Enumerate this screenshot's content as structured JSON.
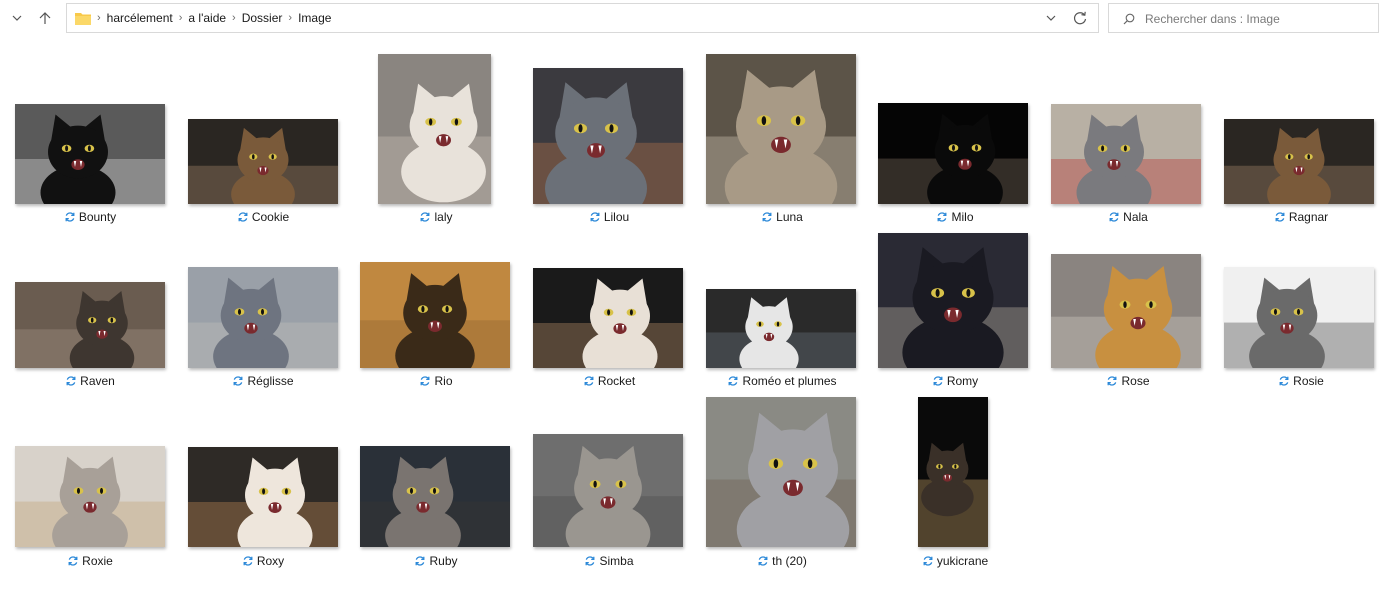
{
  "address_bar": {
    "breadcrumbs": [
      "harcélement",
      "a l'aide",
      "Dossier",
      "Image"
    ]
  },
  "search": {
    "placeholder": "Rechercher dans : Image"
  },
  "colors": {
    "accent": "#0078d7",
    "folder": "#f8c94a",
    "sync_icon": "#2b88d8"
  },
  "icons": {
    "recent": "chevron-down-icon",
    "up": "arrow-up-icon",
    "folder": "folder-icon",
    "dropdown": "chevron-down-icon",
    "refresh": "refresh-icon",
    "search": "search-icon",
    "sync": "sync-pending-icon"
  },
  "files": [
    {
      "name": "Bounty",
      "palette": [
        "#5a5a5a",
        "#111111",
        "#e6e6e6"
      ]
    },
    {
      "name": "Cookie",
      "palette": [
        "#2a2622",
        "#7a5a3a",
        "#b09070"
      ]
    },
    {
      "name": "laly",
      "palette": [
        "#8a8580",
        "#e8e2da",
        "#cfc6bb"
      ]
    },
    {
      "name": "Lilou",
      "palette": [
        "#3b3a3f",
        "#6b7078",
        "#c47a4a"
      ]
    },
    {
      "name": "Luna",
      "palette": [
        "#5c5448",
        "#a89a86",
        "#d8cdbd"
      ]
    },
    {
      "name": "Milo",
      "palette": [
        "#050505",
        "#0a0a0a",
        "#8a7868"
      ]
    },
    {
      "name": "Nala",
      "palette": [
        "#b8b0a4",
        "#7a7a7e",
        "#b82a2a"
      ]
    },
    {
      "name": "Ragnar",
      "palette": [
        "#2a2622",
        "#7a5a3a",
        "#b09070"
      ]
    },
    {
      "name": "Raven",
      "palette": [
        "#6a5c50",
        "#3e3630",
        "#a8988a"
      ]
    },
    {
      "name": "Réglisse",
      "palette": [
        "#9aa0a8",
        "#6e7480",
        "#c6c2be"
      ]
    },
    {
      "name": "Rio",
      "palette": [
        "#c08840",
        "#3a2a18",
        "#8a6030"
      ]
    },
    {
      "name": "Rocket",
      "palette": [
        "#1a1a1a",
        "#e8e0d6",
        "#c89a70"
      ]
    },
    {
      "name": "Roméo et plumes",
      "palette": [
        "#2a2a2a",
        "#e6e6e6",
        "#707a86"
      ]
    },
    {
      "name": "Romy",
      "palette": [
        "#2a2a34",
        "#1a1a22",
        "#c8c0b0"
      ]
    },
    {
      "name": "Rose",
      "palette": [
        "#8a8480",
        "#c89040",
        "#d8d0c8"
      ]
    },
    {
      "name": "Rosie",
      "palette": [
        "#f0f0f0",
        "#6a6a6a",
        "#3a3a3a"
      ]
    },
    {
      "name": "Roxie",
      "palette": [
        "#d8d2ca",
        "#a8a098",
        "#c0a070"
      ]
    },
    {
      "name": "Roxy",
      "palette": [
        "#2e2a26",
        "#eee6dc",
        "#c8905a"
      ]
    },
    {
      "name": "Ruby",
      "palette": [
        "#2a3038",
        "#7a7470",
        "#3a3634"
      ]
    },
    {
      "name": "Simba",
      "palette": [
        "#6e6e6e",
        "#9a9690",
        "#4a4a4a"
      ]
    },
    {
      "name": "th (20)",
      "palette": [
        "#8a8a84",
        "#a0a0a4",
        "#6a5a4a"
      ]
    },
    {
      "name": "yukicrane",
      "palette": [
        "#0a0a0a",
        "#3a3028",
        "#d8b070"
      ]
    }
  ]
}
